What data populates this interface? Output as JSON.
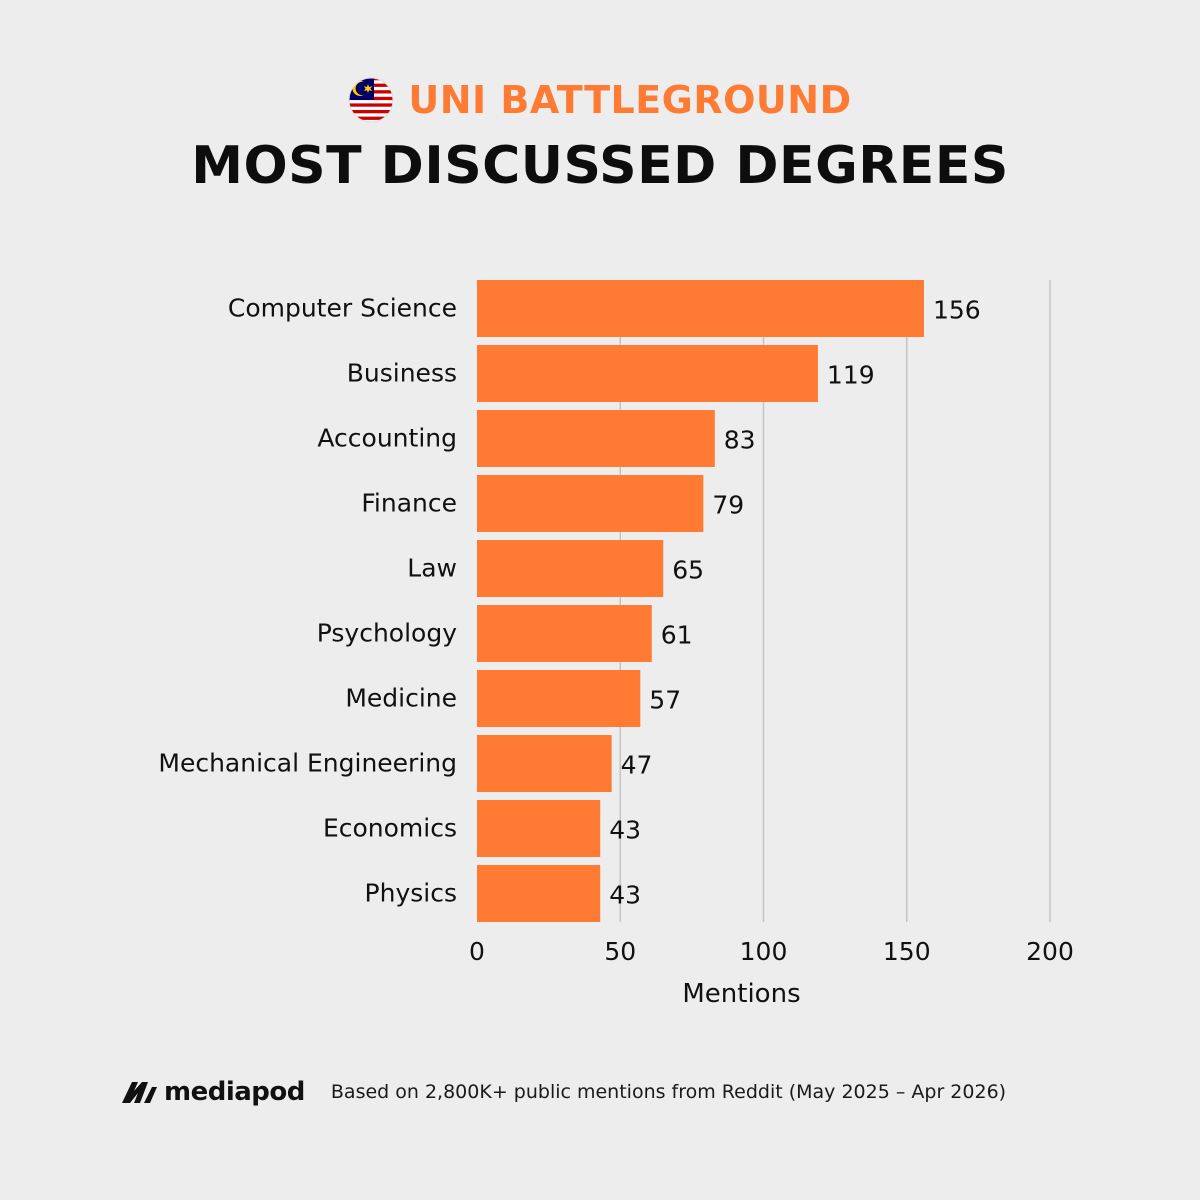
{
  "header": {
    "subtitle": "UNI BATTLEGROUND",
    "title": "MOST DISCUSSED DEGREES",
    "flag_icon": "malaysia-flag-icon"
  },
  "colors": {
    "accent": "#ff7a33",
    "bar": "#ff7a33",
    "grid": "#c4c4c4",
    "background": "#ededed",
    "text": "#111111"
  },
  "chart_data": {
    "type": "bar",
    "orientation": "horizontal",
    "categories": [
      "Computer Science",
      "Business",
      "Accounting",
      "Finance",
      "Law",
      "Psychology",
      "Medicine",
      "Mechanical Engineering",
      "Economics",
      "Physics"
    ],
    "values": [
      156,
      119,
      83,
      79,
      65,
      61,
      57,
      47,
      43,
      43
    ],
    "xlabel": "Mentions",
    "ylabel": "",
    "xlim": [
      0,
      200
    ],
    "xticks": [
      0,
      50,
      100,
      150,
      200
    ],
    "grid": "vertical",
    "legend": "none",
    "data_labels": true
  },
  "footer": {
    "logo_text": "mediapod",
    "source": "Based on 2,800K+ public mentions from Reddit (May 2025 – Apr 2026)"
  }
}
